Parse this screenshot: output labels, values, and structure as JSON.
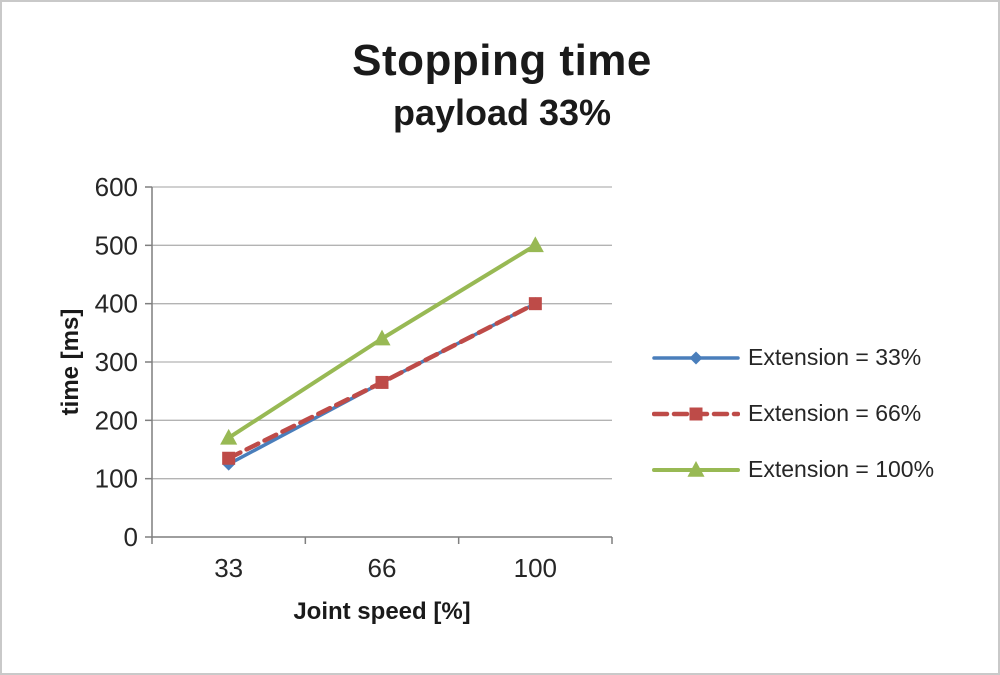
{
  "chart_data": {
    "type": "line",
    "title": "Stopping time",
    "subtitle": "payload 33%",
    "xlabel": "Joint speed [%]",
    "ylabel": "time [ms]",
    "categories": [
      "33",
      "66",
      "100"
    ],
    "series": [
      {
        "name": "Extension = 33%",
        "values": [
          125,
          265,
          400
        ],
        "color": "#4a7ebb",
        "marker": "diamond",
        "dash": "solid"
      },
      {
        "name": "Extension = 66%",
        "values": [
          135,
          265,
          400
        ],
        "color": "#be4b48",
        "marker": "square",
        "dash": "dashed"
      },
      {
        "name": "Extension = 100%",
        "values": [
          170,
          340,
          500
        ],
        "color": "#98b954",
        "marker": "triangle",
        "dash": "solid"
      }
    ],
    "ylim": [
      0,
      600
    ],
    "ytick_step": 100,
    "grid": true,
    "legend_position": "right",
    "colors": {
      "grid": "#b3b3b3",
      "axis": "#7f7f7f",
      "text": "#262626"
    }
  }
}
